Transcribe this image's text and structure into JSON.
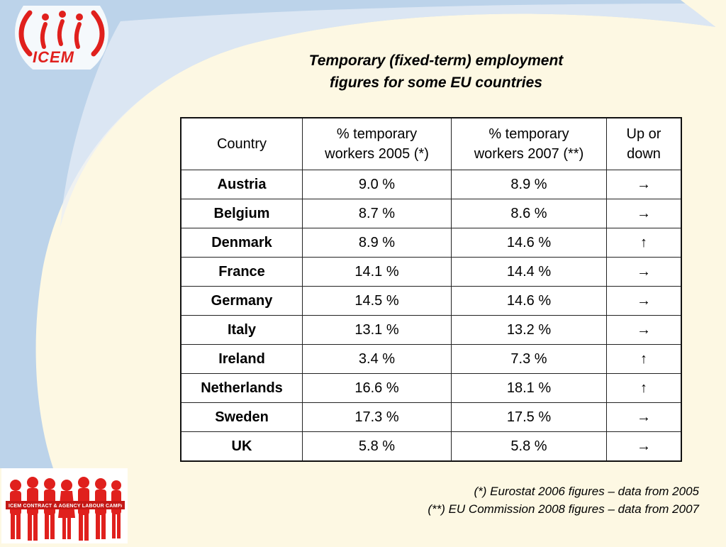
{
  "logo": {
    "text": "ICEM"
  },
  "title": {
    "line1": "Temporary (fixed-term) employment",
    "line2": "figures for some EU countries"
  },
  "table": {
    "headers": {
      "country": "Country",
      "pct_2005_line1": "% temporary",
      "pct_2005_line2": "workers 2005 (*)",
      "pct_2007_line1": "% temporary",
      "pct_2007_line2": "workers 2007 (**)",
      "trend_line1": "Up or",
      "trend_line2": "down"
    },
    "rows": [
      {
        "country": "Austria",
        "pct_2005": "9.0 %",
        "pct_2007": "8.9 %",
        "trend": "→"
      },
      {
        "country": "Belgium",
        "pct_2005": "8.7 %",
        "pct_2007": "8.6 %",
        "trend": "→"
      },
      {
        "country": "Denmark",
        "pct_2005": "8.9 %",
        "pct_2007": "14.6 %",
        "trend": "↑"
      },
      {
        "country": "France",
        "pct_2005": "14.1 %",
        "pct_2007": "14.4 %",
        "trend": "→"
      },
      {
        "country": "Germany",
        "pct_2005": "14.5 %",
        "pct_2007": "14.6 %",
        "trend": "→"
      },
      {
        "country": "Italy",
        "pct_2005": "13.1 %",
        "pct_2007": "13.2 %",
        "trend": "→"
      },
      {
        "country": "Ireland",
        "pct_2005": "3.4 %",
        "pct_2007": "7.3 %",
        "trend": "↑"
      },
      {
        "country": "Netherlands",
        "pct_2005": "16.6 %",
        "pct_2007": "18.1 %",
        "trend": "↑"
      },
      {
        "country": "Sweden",
        "pct_2005": "17.3 %",
        "pct_2007": "17.5 %",
        "trend": "→"
      },
      {
        "country": "UK",
        "pct_2005": "5.8 %",
        "pct_2007": "5.8 %",
        "trend": "→"
      }
    ]
  },
  "footnotes": {
    "note1": "(*) Eurostat 2006 figures – data from 2005",
    "note2": "(**) EU Commission 2008 figures – data from 2007"
  },
  "campaign": {
    "banner": "ICEM CONTRACT & AGENCY LABOUR CAMPAIGN"
  },
  "colors": {
    "brand_red": "#e0201d",
    "background": "#fdf8e3",
    "swoosh_blue": "#bcd3ea"
  }
}
